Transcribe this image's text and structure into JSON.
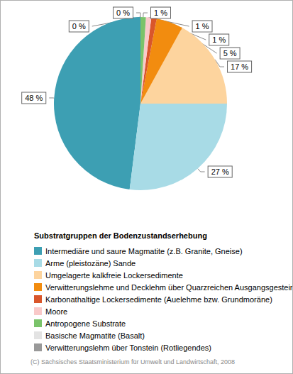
{
  "chart_data": {
    "type": "pie",
    "title": "Substratgruppen der Bodenzustandserhebung",
    "credit": "(C) Sächsisches Staatsministerium für Umwelt und Landwirtschaft, 2008",
    "categories": [
      "Intermediäre und saure Magmatite (z.B. Granite, Gneise)",
      "Arme (pleistozäne) Sande",
      "Umgelagerte kalkfreie Lockersedimente",
      "Verwitterungslehme und Decklehm über Quarzreichen Ausgangsgestein",
      "Karbonathaltige Lockersedimente (Auelehme bzw. Grundmoräne)",
      "Moore",
      "Antropogene Substrate",
      "Basische Magmatite (Basalt)",
      "Verwitterungslehm über Tonstein (Rotliegendes)"
    ],
    "values": [
      48,
      27,
      17,
      5,
      1,
      1,
      1,
      0,
      0
    ],
    "value_labels": [
      "48 %",
      "27 %",
      "17 %",
      "5 %",
      "1 %",
      "1 %",
      "1 %",
      "0 %",
      "0 %"
    ],
    "colors": [
      "#3d9fb3",
      "#a8dbe6",
      "#fdd49e",
      "#f28c0f",
      "#d9562b",
      "#f9c9c9",
      "#7ac36a",
      "#e3e3e3",
      "#999999"
    ],
    "data_labels": true,
    "legend": "bottom"
  }
}
